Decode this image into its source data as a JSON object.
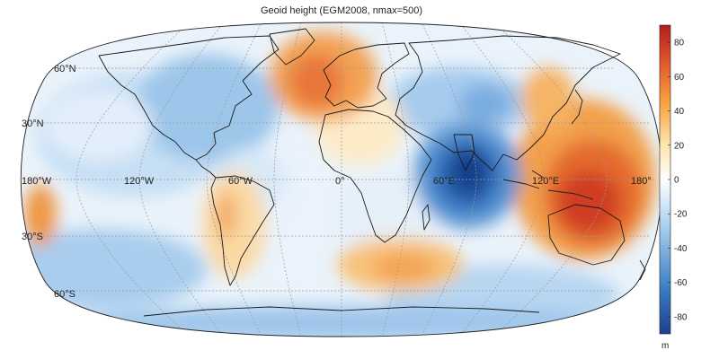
{
  "title": "Geoid height (EGM2008, nmax=500)",
  "projection": "Robinson",
  "lat_labels": [
    "60°N",
    "30°N",
    "30°S",
    "60°S"
  ],
  "lon_labels": [
    "180°W",
    "120°W",
    "60°W",
    "0°",
    "60°E",
    "120°E",
    "180°"
  ],
  "colorbar": {
    "unit": "m",
    "range": [
      -90,
      90
    ],
    "ticks": [
      "80",
      "60",
      "40",
      "20",
      "0",
      "-20",
      "-40",
      "-60",
      "-80"
    ],
    "colors": [
      "#1d3f8c",
      "#3b7fc4",
      "#a9d0ee",
      "#ffffff",
      "#fde3a6",
      "#f7a23e",
      "#e2572d",
      "#b31c1c"
    ]
  },
  "colors": {
    "high": "#c62d1f",
    "positive": "#f5a14a",
    "neutral": "#fff7ea",
    "negative": "#8fc2ea",
    "low": "#123e88",
    "coastline": "#1a1a1a",
    "graticule": "#9a9a9a"
  }
}
